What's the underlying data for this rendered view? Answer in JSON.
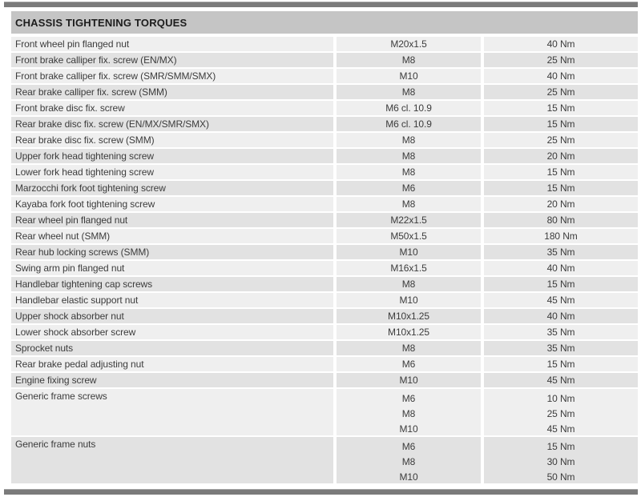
{
  "table": {
    "header": "CHASSIS TIGHTENING TORQUES",
    "rows": [
      {
        "label": "Front wheel pin flanged nut",
        "entries": [
          {
            "size": "M20x1.5",
            "torque": "40 Nm"
          }
        ]
      },
      {
        "label": "Front brake calliper fix. screw (EN/MX)",
        "entries": [
          {
            "size": "M8",
            "torque": "25 Nm"
          }
        ]
      },
      {
        "label": "Front brake calliper fix. screw (SMR/SMM/SMX)",
        "entries": [
          {
            "size": "M10",
            "torque": "40 Nm"
          }
        ]
      },
      {
        "label": "Rear brake calliper fix. screw (SMM)",
        "entries": [
          {
            "size": "M8",
            "torque": "25 Nm"
          }
        ]
      },
      {
        "label": "Front brake disc fix. screw",
        "entries": [
          {
            "size": "M6 cl. 10.9",
            "torque": "15 Nm"
          }
        ]
      },
      {
        "label": "Rear brake disc fix. screw (EN/MX/SMR/SMX)",
        "entries": [
          {
            "size": "M6 cl. 10.9",
            "torque": "15 Nm"
          }
        ]
      },
      {
        "label": "Rear brake disc fix. screw (SMM)",
        "entries": [
          {
            "size": "M8",
            "torque": "25 Nm"
          }
        ]
      },
      {
        "label": "Upper fork head tightening screw",
        "entries": [
          {
            "size": "M8",
            "torque": "20 Nm"
          }
        ]
      },
      {
        "label": "Lower fork head tightening screw",
        "entries": [
          {
            "size": "M8",
            "torque": "15 Nm"
          }
        ]
      },
      {
        "label": "Marzocchi fork foot tightening screw",
        "entries": [
          {
            "size": "M6",
            "torque": "15 Nm"
          }
        ]
      },
      {
        "label": "Kayaba fork foot tightening screw",
        "entries": [
          {
            "size": "M8",
            "torque": "20 Nm"
          }
        ]
      },
      {
        "label": "Rear wheel pin flanged nut",
        "entries": [
          {
            "size": "M22x1.5",
            "torque": "80 Nm"
          }
        ]
      },
      {
        "label": "Rear wheel nut (SMM)",
        "entries": [
          {
            "size": "M50x1.5",
            "torque": "180 Nm"
          }
        ]
      },
      {
        "label": "Rear hub locking screws (SMM)",
        "entries": [
          {
            "size": "M10",
            "torque": "35 Nm"
          }
        ]
      },
      {
        "label": "Swing arm pin flanged nut",
        "entries": [
          {
            "size": "M16x1.5",
            "torque": "40 Nm"
          }
        ]
      },
      {
        "label": "Handlebar tightening cap screws",
        "entries": [
          {
            "size": "M8",
            "torque": "15 Nm"
          }
        ]
      },
      {
        "label": "Handlebar elastic support nut",
        "entries": [
          {
            "size": "M10",
            "torque": "45 Nm"
          }
        ]
      },
      {
        "label": "Upper shock absorber nut",
        "entries": [
          {
            "size": "M10x1.25",
            "torque": "40 Nm"
          }
        ]
      },
      {
        "label": "Lower shock absorber screw",
        "entries": [
          {
            "size": "M10x1.25",
            "torque": "35 Nm"
          }
        ]
      },
      {
        "label": "Sprocket nuts",
        "entries": [
          {
            "size": "M8",
            "torque": "35 Nm"
          }
        ]
      },
      {
        "label": "Rear brake pedal adjusting nut",
        "entries": [
          {
            "size": "M6",
            "torque": "15 Nm"
          }
        ]
      },
      {
        "label": "Engine fixing screw",
        "entries": [
          {
            "size": "M10",
            "torque": "45 Nm"
          }
        ]
      },
      {
        "label": "Generic frame screws",
        "entries": [
          {
            "size": "M6",
            "torque": "10 Nm"
          },
          {
            "size": "M8",
            "torque": "25 Nm"
          },
          {
            "size": "M10",
            "torque": "45 Nm"
          }
        ]
      },
      {
        "label": "Generic frame nuts",
        "entries": [
          {
            "size": "M6",
            "torque": "15 Nm"
          },
          {
            "size": "M8",
            "torque": "30 Nm"
          },
          {
            "size": "M10",
            "torque": "50 Nm"
          }
        ]
      }
    ]
  },
  "colors": {
    "header_bg": "#c5c5c5",
    "row_light": "#efefef",
    "row_dark": "#e2e2e2",
    "bar": "#7b7b7b",
    "text": "#3c3c3c"
  }
}
